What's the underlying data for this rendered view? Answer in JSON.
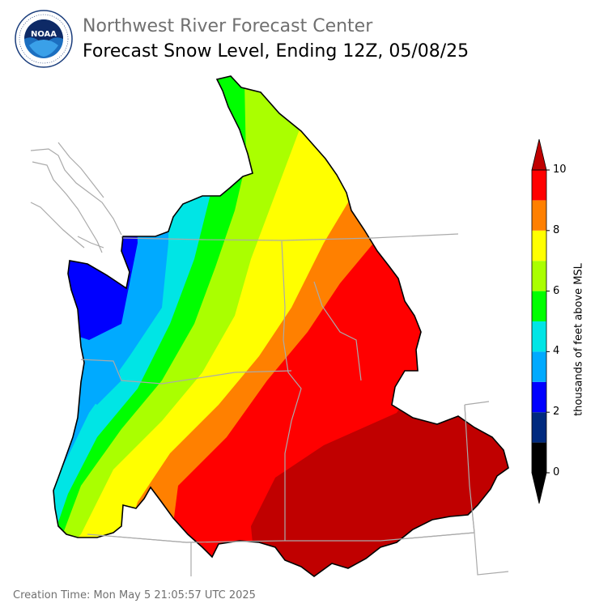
{
  "header": {
    "org_title": "Northwest River Forecast Center",
    "product_title": "Forecast Snow Level, Ending 12Z, 05/08/25"
  },
  "logo": {
    "center_text": "NOAA",
    "ring_text": "NATIONAL OCEANIC AND ATMOSPHERIC ADMINISTRATION",
    "ring_text_bottom": "U.S. DEPARTMENT OF COMMERCE"
  },
  "colorbar": {
    "label": "thousands of feet above MSL",
    "ticks": [
      "0",
      "2",
      "4",
      "6",
      "8",
      "10"
    ],
    "bins": [
      {
        "range": "0-1",
        "color": "#000000"
      },
      {
        "range": "1-2",
        "color": "#002A7F"
      },
      {
        "range": "2-3",
        "color": "#0000FF"
      },
      {
        "range": "3-4",
        "color": "#00AAFF"
      },
      {
        "range": "4-5",
        "color": "#00E5E5"
      },
      {
        "range": "5-6",
        "color": "#00FF00"
      },
      {
        "range": "6-7",
        "color": "#AAFF00"
      },
      {
        "range": "7-8",
        "color": "#FFFF00"
      },
      {
        "range": "8-9",
        "color": "#FF8000"
      },
      {
        "range": "9-10",
        "color": "#FF0000"
      },
      {
        "range": ">10",
        "color": "#C00000"
      }
    ]
  },
  "map": {
    "overview": "Snow level increasing from west coast (3000-4000 ft) to southeast (>10000 ft)"
  },
  "footer": {
    "creation_time": "Creation Time: Mon May 5 21:05:57 UTC 2025"
  }
}
